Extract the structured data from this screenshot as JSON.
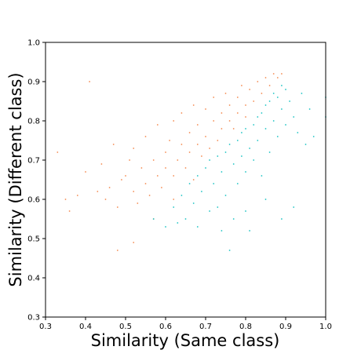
{
  "chart_data": {
    "type": "scatter",
    "title": "",
    "xlabel": "Similarity (Same class)",
    "ylabel": "Similarity (Different class)",
    "xlim": [
      0.3,
      1.0
    ],
    "ylim": [
      0.3,
      1.0
    ],
    "xticks": [
      "0.3",
      "0.4",
      "0.5",
      "0.6",
      "0.7",
      "0.8",
      "0.9",
      "1.0"
    ],
    "yticks": [
      "0.3",
      "0.4",
      "0.5",
      "0.6",
      "0.7",
      "0.8",
      "0.9",
      "1.0"
    ],
    "grid": false,
    "legend": "none",
    "series": [
      {
        "color": "#F4894E",
        "points": [
          [
            0.33,
            0.72
          ],
          [
            0.35,
            0.6
          ],
          [
            0.36,
            0.57
          ],
          [
            0.38,
            0.61
          ],
          [
            0.4,
            0.67
          ],
          [
            0.41,
            0.9
          ],
          [
            0.43,
            0.62
          ],
          [
            0.44,
            0.69
          ],
          [
            0.45,
            0.6
          ],
          [
            0.46,
            0.63
          ],
          [
            0.47,
            0.74
          ],
          [
            0.48,
            0.58
          ],
          [
            0.49,
            0.65
          ],
          [
            0.5,
            0.66
          ],
          [
            0.51,
            0.7
          ],
          [
            0.52,
            0.62
          ],
          [
            0.52,
            0.73
          ],
          [
            0.53,
            0.59
          ],
          [
            0.54,
            0.68
          ],
          [
            0.55,
            0.64
          ],
          [
            0.55,
            0.76
          ],
          [
            0.56,
            0.61
          ],
          [
            0.57,
            0.7
          ],
          [
            0.58,
            0.66
          ],
          [
            0.58,
            0.79
          ],
          [
            0.59,
            0.63
          ],
          [
            0.6,
            0.72
          ],
          [
            0.6,
            0.68
          ],
          [
            0.61,
            0.75
          ],
          [
            0.62,
            0.66
          ],
          [
            0.62,
            0.8
          ],
          [
            0.63,
            0.7
          ],
          [
            0.64,
            0.74
          ],
          [
            0.64,
            0.82
          ],
          [
            0.65,
            0.68
          ],
          [
            0.66,
            0.77
          ],
          [
            0.66,
            0.72
          ],
          [
            0.67,
            0.84
          ],
          [
            0.68,
            0.74
          ],
          [
            0.68,
            0.79
          ],
          [
            0.69,
            0.71
          ],
          [
            0.7,
            0.76
          ],
          [
            0.7,
            0.83
          ],
          [
            0.71,
            0.73
          ],
          [
            0.72,
            0.8
          ],
          [
            0.72,
            0.86
          ],
          [
            0.73,
            0.75
          ],
          [
            0.74,
            0.82
          ],
          [
            0.74,
            0.78
          ],
          [
            0.75,
            0.87
          ],
          [
            0.76,
            0.8
          ],
          [
            0.76,
            0.84
          ],
          [
            0.77,
            0.78
          ],
          [
            0.78,
            0.86
          ],
          [
            0.78,
            0.82
          ],
          [
            0.79,
            0.89
          ],
          [
            0.8,
            0.84
          ],
          [
            0.8,
            0.81
          ],
          [
            0.81,
            0.88
          ],
          [
            0.82,
            0.85
          ],
          [
            0.83,
            0.9
          ],
          [
            0.84,
            0.87
          ],
          [
            0.85,
            0.91
          ],
          [
            0.86,
            0.89
          ],
          [
            0.87,
            0.92
          ],
          [
            0.88,
            0.91
          ],
          [
            0.89,
            0.92
          ],
          [
            0.52,
            0.49
          ],
          [
            0.48,
            0.47
          ],
          [
            0.57,
            0.55
          ],
          [
            0.62,
            0.6
          ],
          [
            0.67,
            0.65
          ]
        ]
      },
      {
        "color": "#19C3C3",
        "points": [
          [
            0.57,
            0.55
          ],
          [
            0.6,
            0.53
          ],
          [
            0.62,
            0.58
          ],
          [
            0.64,
            0.61
          ],
          [
            0.65,
            0.55
          ],
          [
            0.66,
            0.64
          ],
          [
            0.67,
            0.59
          ],
          [
            0.68,
            0.66
          ],
          [
            0.69,
            0.62
          ],
          [
            0.7,
            0.68
          ],
          [
            0.71,
            0.57
          ],
          [
            0.71,
            0.7
          ],
          [
            0.72,
            0.64
          ],
          [
            0.73,
            0.71
          ],
          [
            0.73,
            0.58
          ],
          [
            0.74,
            0.67
          ],
          [
            0.75,
            0.72
          ],
          [
            0.75,
            0.61
          ],
          [
            0.76,
            0.74
          ],
          [
            0.77,
            0.69
          ],
          [
            0.77,
            0.55
          ],
          [
            0.78,
            0.75
          ],
          [
            0.78,
            0.64
          ],
          [
            0.79,
            0.71
          ],
          [
            0.79,
            0.77
          ],
          [
            0.8,
            0.67
          ],
          [
            0.8,
            0.78
          ],
          [
            0.81,
            0.73
          ],
          [
            0.81,
            0.52
          ],
          [
            0.82,
            0.79
          ],
          [
            0.82,
            0.7
          ],
          [
            0.83,
            0.81
          ],
          [
            0.83,
            0.75
          ],
          [
            0.84,
            0.82
          ],
          [
            0.84,
            0.66
          ],
          [
            0.85,
            0.78
          ],
          [
            0.85,
            0.84
          ],
          [
            0.86,
            0.72
          ],
          [
            0.86,
            0.85
          ],
          [
            0.87,
            0.8
          ],
          [
            0.87,
            0.87
          ],
          [
            0.88,
            0.76
          ],
          [
            0.88,
            0.86
          ],
          [
            0.89,
            0.83
          ],
          [
            0.89,
            0.89
          ],
          [
            0.9,
            0.79
          ],
          [
            0.9,
            0.88
          ],
          [
            0.91,
            0.85
          ],
          [
            0.92,
            0.81
          ],
          [
            0.93,
            0.77
          ],
          [
            0.94,
            0.87
          ],
          [
            0.95,
            0.74
          ],
          [
            0.96,
            0.83
          ],
          [
            0.97,
            0.76
          ],
          [
            1.0,
            0.86
          ],
          [
            1.0,
            0.81
          ],
          [
            0.92,
            0.58
          ],
          [
            0.89,
            0.55
          ],
          [
            0.85,
            0.6
          ],
          [
            0.8,
            0.57
          ],
          [
            0.76,
            0.47
          ],
          [
            0.74,
            0.52
          ],
          [
            0.68,
            0.53
          ],
          [
            0.63,
            0.54
          ]
        ]
      }
    ]
  }
}
